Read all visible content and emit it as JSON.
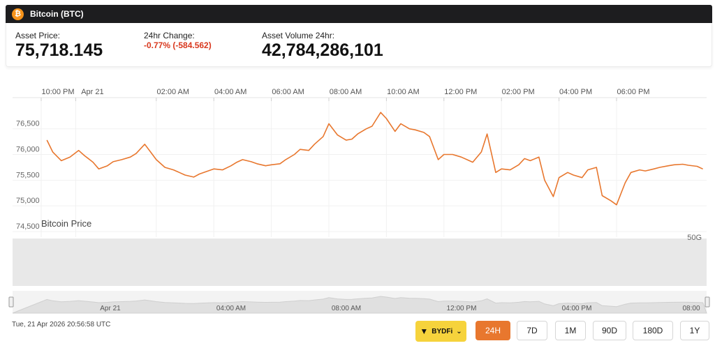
{
  "header": {
    "title": "Bitcoin (BTC)",
    "icon": "bitcoin-icon",
    "icon_glyph": "₿"
  },
  "stats": {
    "price": {
      "label": "Asset Price:",
      "value": "75,718.145"
    },
    "change": {
      "label": "24hr Change:",
      "value": "-0.77% (-584.562)"
    },
    "volume": {
      "label": "Asset Volume 24hr:",
      "value": "42,784,286,101"
    }
  },
  "footer": {
    "timestamp": "Tue, 21 Apr 2026 20:56:58 UTC"
  },
  "exchange": {
    "label": "BYDFi",
    "chevron": "⌄"
  },
  "ranges": [
    "24H",
    "7D",
    "1M",
    "90D",
    "180D",
    "1Y"
  ],
  "selected_range": "24H",
  "colors": {
    "line": "#e8772e",
    "volume": "#e6e6e6",
    "accent": "#e8772e",
    "negative": "#d9381e"
  },
  "chart_data": {
    "type": "line",
    "series_label": "Bitcoin Price",
    "volume_label": "50G",
    "x_ticks": [
      "10:00 PM",
      "Apr 21",
      "02:00 AM",
      "04:00 AM",
      "06:00 AM",
      "08:00 AM",
      "10:00 AM",
      "12:00 PM",
      "02:00 PM",
      "04:00 PM",
      "06:00 PM"
    ],
    "y_ticks": [
      "76,500",
      "76,000",
      "75,500",
      "75,000",
      "74,500"
    ],
    "ylim": [
      74500,
      76700
    ],
    "navigator_ticks": [
      "Apr 21",
      "04:00 AM",
      "08:00 AM",
      "12:00 PM",
      "04:00 PM",
      "08:00"
    ],
    "x_hours": [
      -1.8,
      -1.6,
      -1.3,
      -1.0,
      -0.7,
      -0.5,
      -0.2,
      0.0,
      0.3,
      0.5,
      0.8,
      1.1,
      1.3,
      1.6,
      1.8,
      2.0,
      2.3,
      2.6,
      2.8,
      3.0,
      3.3,
      3.5,
      3.8,
      4.0,
      4.3,
      4.6,
      4.8,
      5.0,
      5.3,
      5.5,
      5.8,
      6.0,
      6.3,
      6.5,
      6.8,
      7.0,
      7.3,
      7.5,
      7.8,
      8.0,
      8.3,
      8.6,
      8.8,
      9.0,
      9.3,
      9.5,
      9.8,
      10.0,
      10.3,
      10.5,
      10.8,
      11.0,
      11.3,
      11.5,
      11.8,
      12.0,
      12.3,
      12.6,
      12.8,
      13.0,
      13.3,
      13.5,
      13.8,
      14.0,
      14.3,
      14.6,
      14.8,
      15.0,
      15.3,
      15.5,
      15.8,
      16.0,
      16.3,
      16.5,
      16.8,
      17.0,
      17.3,
      17.5,
      17.8,
      18.0,
      18.3,
      18.5,
      18.8,
      19.0,
      19.3,
      19.5,
      19.8,
      20.0,
      20.3,
      20.5,
      20.8,
      21.0
    ],
    "values": [
      76280,
      76050,
      75880,
      75950,
      76080,
      75980,
      75850,
      75720,
      75780,
      75860,
      75900,
      75950,
      76020,
      76200,
      76050,
      75900,
      75750,
      75700,
      75650,
      75600,
      75560,
      75620,
      75680,
      75720,
      75700,
      75780,
      75850,
      75900,
      75860,
      75820,
      75780,
      75800,
      75820,
      75900,
      76000,
      76100,
      76080,
      76200,
      76350,
      76600,
      76380,
      76280,
      76300,
      76400,
      76500,
      76550,
      76820,
      76700,
      76450,
      76600,
      76500,
      76480,
      76430,
      76350,
      75900,
      76000,
      76000,
      75950,
      75900,
      75850,
      76050,
      76400,
      75650,
      75720,
      75700,
      75800,
      75920,
      75880,
      75950,
      75500,
      75180,
      75550,
      75650,
      75600,
      75550,
      75700,
      75750,
      75200,
      75100,
      75020,
      75450,
      75650,
      75700,
      75680,
      75720,
      75750,
      75780,
      75800,
      75810,
      75790,
      75770,
      75718
    ]
  }
}
